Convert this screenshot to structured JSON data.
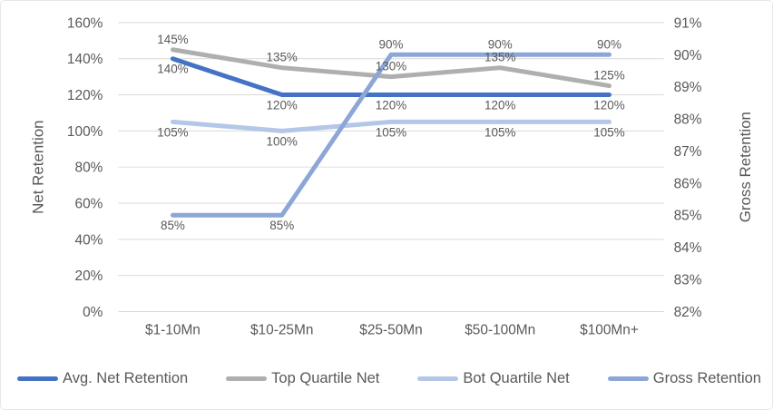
{
  "colors": {
    "text": "#595959",
    "data_label_text": "#595959",
    "gridline": "#d9d9d9",
    "card_border": "#e7e7e7",
    "background": "#ffffff"
  },
  "chart_data": {
    "type": "line",
    "categories": [
      "$1-10Mn",
      "$10-25Mn",
      "$25-50Mn",
      "$50-100Mn",
      "$100Mn+"
    ],
    "series": [
      {
        "name": "Avg. Net Retention",
        "axis": "left",
        "color": "#4472c4",
        "values": [
          140,
          120,
          120,
          120,
          120
        ],
        "data_labels": [
          "140%",
          "120%",
          "120%",
          "120%",
          "120%"
        ],
        "label_positions": [
          "below",
          "below",
          "below",
          "below",
          "below"
        ]
      },
      {
        "name": "Top Quartile Net",
        "axis": "left",
        "color": "#afafaf",
        "values": [
          145,
          135,
          130,
          135,
          125
        ],
        "data_labels": [
          "145%",
          "135%",
          "130%",
          "135%",
          "125%"
        ],
        "label_positions": [
          "above",
          "above",
          "above",
          "above",
          "above"
        ]
      },
      {
        "name": "Bot Quartile Net",
        "axis": "left",
        "color": "#b4c7e7",
        "values": [
          105,
          100,
          105,
          105,
          105
        ],
        "data_labels": [
          "105%",
          "100%",
          "105%",
          "105%",
          "105%"
        ],
        "label_positions": [
          "below",
          "below",
          "below",
          "below",
          "below"
        ]
      },
      {
        "name": "Gross Retention",
        "axis": "right",
        "color": "#8da6d8",
        "values": [
          85,
          85,
          90,
          90,
          90
        ],
        "data_labels": [
          "85%",
          "85%",
          "90%",
          "90%",
          "90%"
        ],
        "label_positions": [
          "below",
          "below",
          "above",
          "above",
          "above"
        ]
      }
    ],
    "left_axis": {
      "title": "Net Retention",
      "min": 0,
      "max": 160,
      "step": 20,
      "tick_labels": [
        "0%",
        "20%",
        "40%",
        "60%",
        "80%",
        "100%",
        "120%",
        "140%",
        "160%"
      ]
    },
    "right_axis": {
      "title": "Gross Retention",
      "min": 82,
      "max": 91,
      "step": 1,
      "tick_labels": [
        "82%",
        "83%",
        "84%",
        "85%",
        "86%",
        "87%",
        "88%",
        "89%",
        "90%",
        "91%"
      ]
    },
    "grid": true,
    "legend_position": "bottom"
  }
}
